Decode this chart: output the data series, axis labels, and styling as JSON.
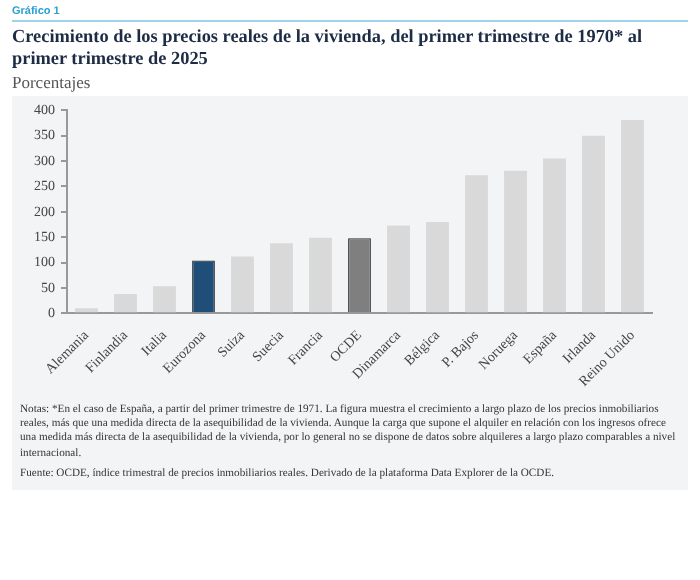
{
  "chart_data": {
    "type": "bar",
    "title": "Crecimiento de los precios reales de la vivienda, del primer trimestre de 1970* al primer trimestre de 2025",
    "subtitle": "Porcentajes",
    "categories": [
      "Alemania",
      "Finlandia",
      "Italia",
      "Eurozona",
      "Suiza",
      "Suecia",
      "Francia",
      "OCDE",
      "Dinamarca",
      "Bélgica",
      "P. Bajos",
      "Noruega",
      "España",
      "Irlanda",
      "Reino Unido"
    ],
    "values": [
      10,
      38,
      53,
      104,
      112,
      138,
      149,
      148,
      173,
      180,
      272,
      281,
      305,
      350,
      381
    ],
    "colors": [
      "#d9d9d9",
      "#d9d9d9",
      "#d9d9d9",
      "#1f4e79",
      "#d9d9d9",
      "#d9d9d9",
      "#d9d9d9",
      "#7f7f7f",
      "#d9d9d9",
      "#d9d9d9",
      "#d9d9d9",
      "#d9d9d9",
      "#d9d9d9",
      "#d9d9d9",
      "#d9d9d9"
    ],
    "ylim": [
      0,
      400
    ],
    "yticks": [
      0,
      50,
      100,
      150,
      200,
      250,
      300,
      350,
      400
    ],
    "grid": false,
    "legend": false,
    "annotations": [
      "Gráfico 1",
      "Notas: *En el caso de España, a partir del primer trimestre de 1971. La figura muestra el crecimiento a largo plazo de los precios inmobiliarios reales, más que una medida directa de la asequibilidad de la vivienda. Aunque la carga que supone el alquiler en relación con los ingresos ofrece una medida más directa de la asequibilidad de la vivienda, por lo general no se dispone de datos sobre alquileres a largo plazo comparables a nivel internacional.",
      "Fuente: OCDE, índice trimestral de precios inmobiliarios reales. Derivado de la plataforma Data Explorer de la OCDE."
    ]
  }
}
